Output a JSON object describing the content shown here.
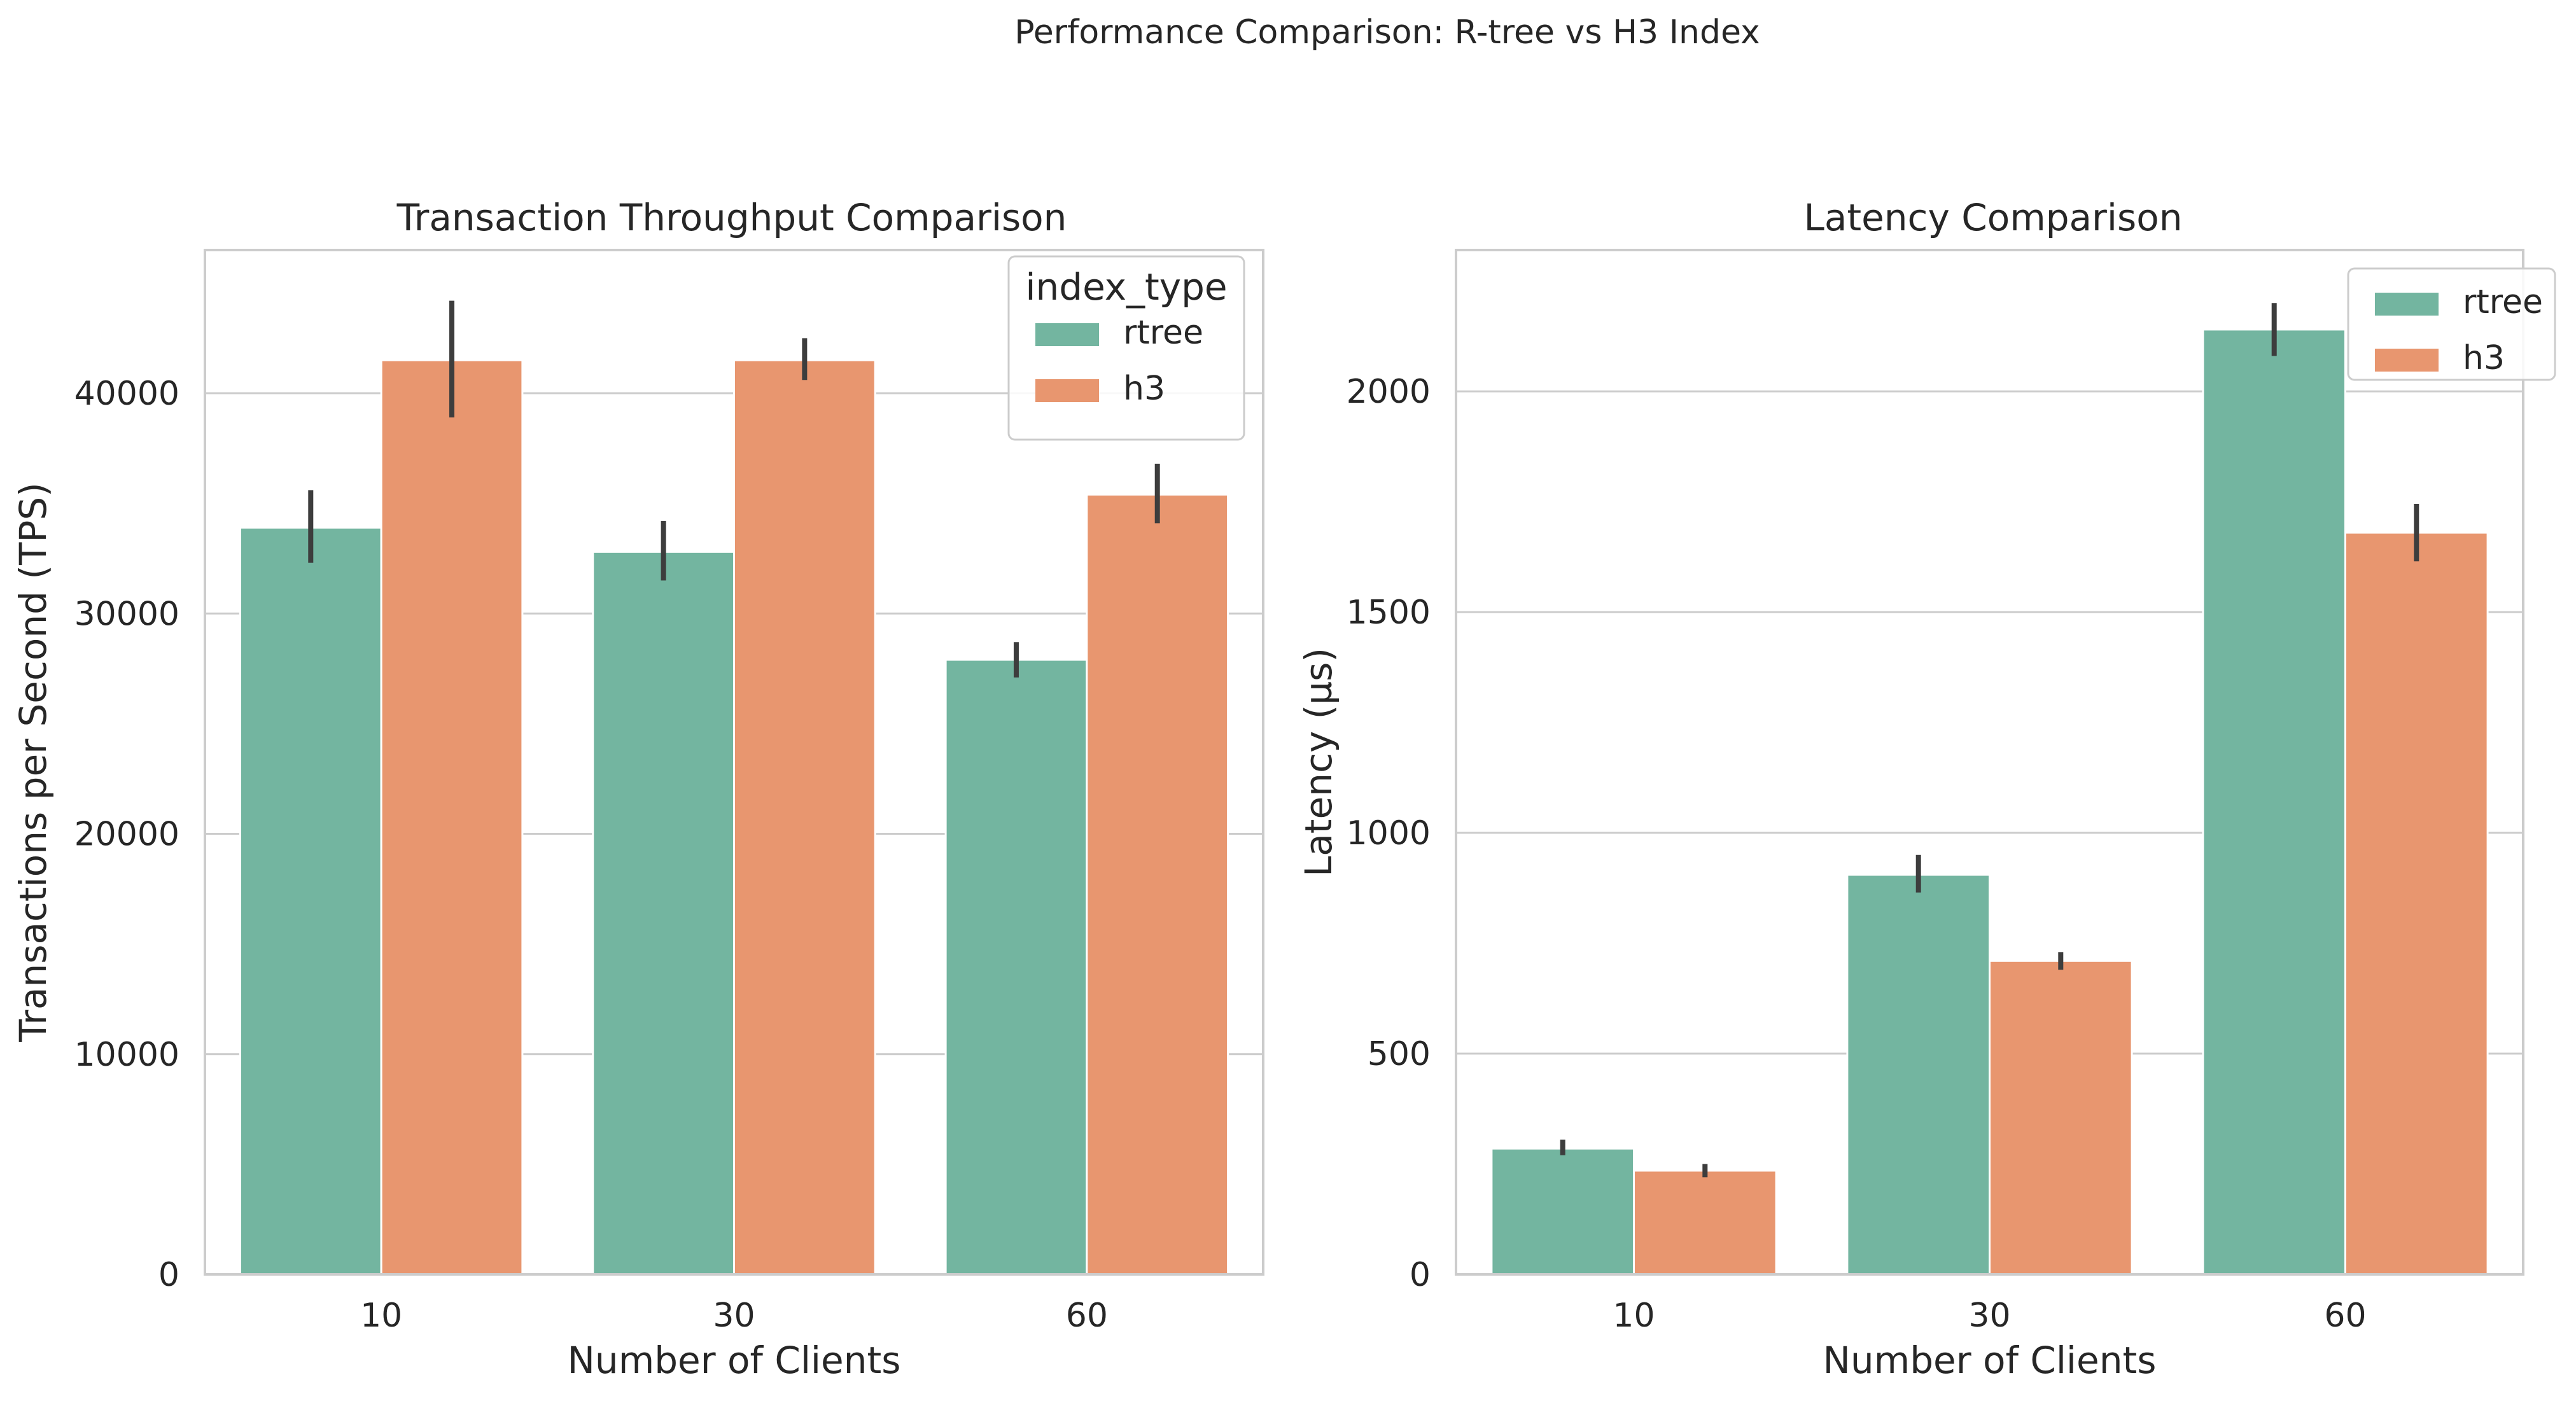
{
  "figure": {
    "suptitle": "Performance Comparison: R-tree vs H3 Index"
  },
  "colors": {
    "rtree": "#73b5a0",
    "h3": "#e8966f",
    "errorbar": "#3d3d3d",
    "grid": "#cccccc",
    "frame": "#cccccc",
    "text": "#262626"
  },
  "chart_data": [
    {
      "type": "bar",
      "title": "Transaction Throughput Comparison",
      "xlabel": "Number of Clients",
      "ylabel": "Transactions per Second (TPS)",
      "categories": [
        "10",
        "30",
        "60"
      ],
      "ylim": [
        0,
        46500
      ],
      "yticks": [
        0,
        10000,
        20000,
        30000,
        40000
      ],
      "grid": true,
      "legend": {
        "title": "index_type",
        "placement": "top-right"
      },
      "series": [
        {
          "name": "rtree",
          "values": [
            33900,
            32800,
            27900
          ],
          "err_low": [
            32300,
            31500,
            27100
          ],
          "err_high": [
            35600,
            34200,
            28700
          ]
        },
        {
          "name": "h3",
          "values": [
            41500,
            41500,
            35400
          ],
          "err_low": [
            38900,
            40600,
            34100
          ],
          "err_high": [
            44200,
            42500,
            36800
          ]
        }
      ]
    },
    {
      "type": "bar",
      "title": "Latency Comparison",
      "xlabel": "Number of Clients",
      "ylabel": "Latency (µs)",
      "categories": [
        "10",
        "30",
        "60"
      ],
      "ylim": [
        0,
        2320
      ],
      "yticks": [
        0,
        500,
        1000,
        1500,
        2000
      ],
      "grid": true,
      "legend": {
        "title": "",
        "placement": "top-right"
      },
      "series": [
        {
          "name": "rtree",
          "values": [
            285,
            905,
            2140
          ],
          "err_low": [
            270,
            865,
            2080
          ],
          "err_high": [
            305,
            950,
            2200
          ]
        },
        {
          "name": "h3",
          "values": [
            235,
            710,
            1680
          ],
          "err_low": [
            220,
            690,
            1615
          ],
          "err_high": [
            250,
            730,
            1745
          ]
        }
      ]
    }
  ]
}
